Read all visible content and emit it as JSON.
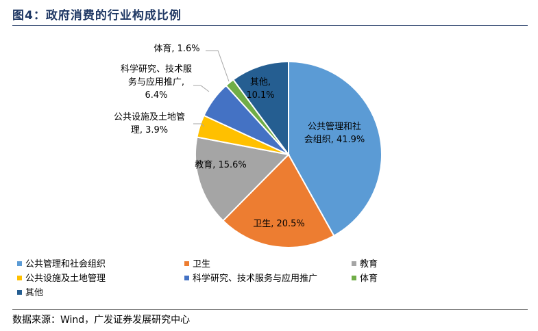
{
  "figure": {
    "title": "图4：政府消费的行业构成比例",
    "source": "数据来源：Wind，广发证券发展研究中心"
  },
  "chart_data": {
    "type": "pie",
    "series": [
      {
        "name": "公共管理和社会组织",
        "value": 41.9,
        "color": "#5b9bd5"
      },
      {
        "name": "卫生",
        "value": 20.5,
        "color": "#ed7d31"
      },
      {
        "name": "教育",
        "value": 15.6,
        "color": "#a5a5a5"
      },
      {
        "name": "公共设施及土地管理",
        "value": 3.9,
        "color": "#ffc000"
      },
      {
        "name": "科学研究、技术服务与应用推广",
        "value": 6.4,
        "color": "#4472c4"
      },
      {
        "name": "体育",
        "value": 1.6,
        "color": "#70ad47"
      },
      {
        "name": "其他",
        "value": 10.1,
        "color": "#255e91"
      }
    ],
    "labels": [
      {
        "lines": [
          "公共管理和社",
          "会组织, 41.9%"
        ]
      },
      {
        "lines": [
          "卫生, 20.5%"
        ]
      },
      {
        "lines": [
          "教育, 15.6%"
        ]
      },
      {
        "lines": [
          "公共设施及土地管",
          "理, 3.9%"
        ]
      },
      {
        "lines": [
          "科学研究、技术服",
          "务与应用推广,",
          "6.4%"
        ]
      },
      {
        "lines": [
          "体育, 1.6%"
        ]
      },
      {
        "lines": [
          "其他,",
          "10.1%"
        ]
      }
    ],
    "legend_position": "bottom"
  }
}
